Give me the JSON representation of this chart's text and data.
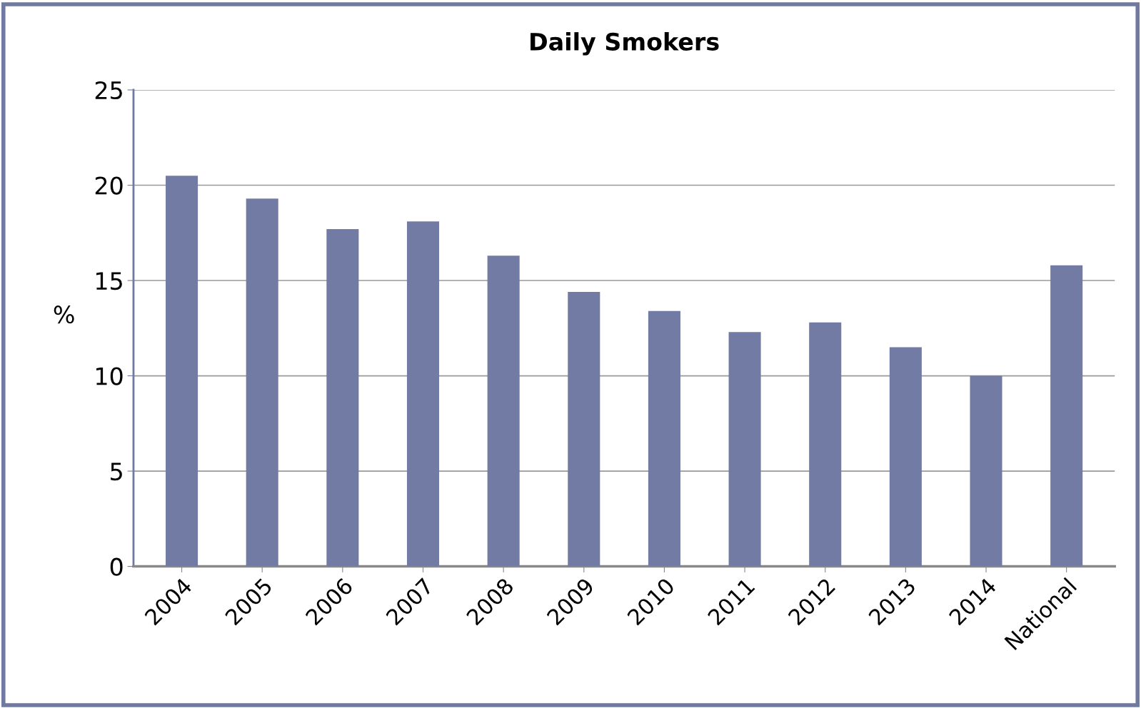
{
  "chart_data": {
    "type": "bar",
    "title": "Daily Smokers",
    "ylabel": "%",
    "categories": [
      "2004",
      "2005",
      "2006",
      "2007",
      "2008",
      "2009",
      "2010",
      "2011",
      "2012",
      "2013",
      "2014",
      "National"
    ],
    "values": [
      20.5,
      19.3,
      17.7,
      18.1,
      16.3,
      14.4,
      13.4,
      12.3,
      12.8,
      11.5,
      10.0,
      15.8
    ],
    "color": "#717ba3",
    "ylim": [
      0,
      25
    ],
    "yticks": [
      0,
      5,
      10,
      15,
      20,
      25
    ],
    "grid": "y"
  }
}
